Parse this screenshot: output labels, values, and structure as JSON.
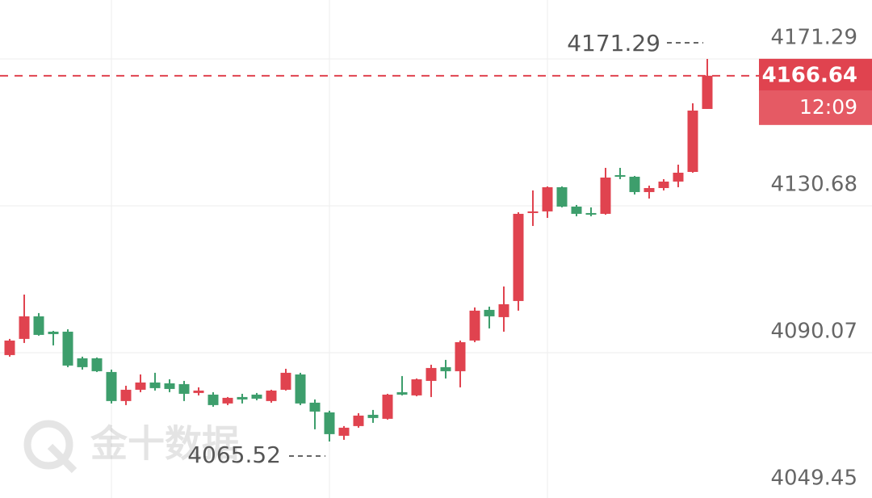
{
  "chart_data": {
    "type": "candlestick",
    "ylim": [
      4049.45,
      4187.58
    ],
    "yticks": [
      4171.29,
      4130.68,
      4090.07,
      4049.45
    ],
    "grid": true,
    "up_color": "#e0434f",
    "down_color": "#3d9e6c",
    "open": [
      4089.41,
      4093.88,
      4100.12,
      4095.88,
      4095.88,
      4088.52,
      4088.52,
      4084.73,
      4076.7,
      4079.82,
      4081.83,
      4081.6,
      4081.38,
      4078.93,
      4078.48,
      4076.03,
      4077.81,
      4078.48,
      4076.7,
      4079.82,
      4084.06,
      4076.25,
      4073.57,
      4067.1,
      4069.78,
      4072.9,
      4071.79,
      4079.15,
      4078.26,
      4082.27,
      4086.07,
      4084.95,
      4093.43,
      4101.91,
      4099.9,
      4104.36,
      4128.68,
      4129.13,
      4135.82,
      4130.46,
      4128.68,
      4128.46,
      4139.16,
      4138.72,
      4134.48,
      4135.59,
      4137.38,
      4140.05,
      4157.46
    ],
    "high": [
      4093.88,
      4106.14,
      4101.02,
      4096.1,
      4096.55,
      4088.97,
      4088.74,
      4085.4,
      4080.93,
      4084.06,
      4084.51,
      4082.72,
      4082.27,
      4080.49,
      4079.15,
      4077.81,
      4078.7,
      4078.93,
      4079.82,
      4085.62,
      4084.51,
      4077.14,
      4074.02,
      4069.78,
      4073.35,
      4074.24,
      4078.7,
      4083.61,
      4082.94,
      4086.74,
      4088.08,
      4093.43,
      4102.58,
      4102.8,
      4108.38,
      4128.9,
      4134.93,
      4136.04,
      4136.04,
      4130.91,
      4130.24,
      4141.17,
      4141.17,
      4138.94,
      4136.26,
      4138.05,
      4142.06,
      4159.02,
      4171.29
    ],
    "low": [
      4088.97,
      4092.76,
      4094.77,
      4092.09,
      4086.07,
      4085.4,
      4084.73,
      4076.03,
      4075.58,
      4079.15,
      4079.6,
      4079.15,
      4076.7,
      4078.26,
      4075.13,
      4075.58,
      4076.03,
      4076.92,
      4076.25,
      4079.6,
      4075.58,
      4068.89,
      4065.52,
      4065.98,
      4069.33,
      4070.67,
      4071.57,
      4078.26,
      4078.03,
      4077.81,
      4082.94,
      4080.49,
      4092.98,
      4096.78,
      4095.88,
      4101.69,
      4125.11,
      4127.34,
      4130.24,
      4127.79,
      4127.79,
      4128.23,
      4138.05,
      4133.81,
      4132.69,
      4134.93,
      4135.82,
      4139.83,
      4157.46
    ],
    "close": [
      4093.43,
      4100.12,
      4094.99,
      4095.21,
      4086.51,
      4086.07,
      4084.95,
      4076.7,
      4079.82,
      4081.83,
      4080.27,
      4080.04,
      4078.7,
      4079.6,
      4075.58,
      4077.59,
      4077.14,
      4077.36,
      4079.6,
      4084.51,
      4076.03,
      4073.79,
      4067.55,
      4069.33,
      4072.68,
      4072.01,
      4078.48,
      4078.48,
      4082.72,
      4085.84,
      4084.95,
      4092.98,
      4101.69,
      4100.12,
      4103.47,
      4128.46,
      4129.13,
      4135.82,
      4130.46,
      4128.46,
      4128.23,
      4138.49,
      4138.94,
      4134.48,
      4135.59,
      4137.38,
      4139.83,
      4157.01,
      4166.64
    ],
    "max_annotation": 4171.29,
    "min_annotation": 4065.52,
    "last_price": 4166.64,
    "countdown": "12:09",
    "watermark": "金十数据"
  }
}
